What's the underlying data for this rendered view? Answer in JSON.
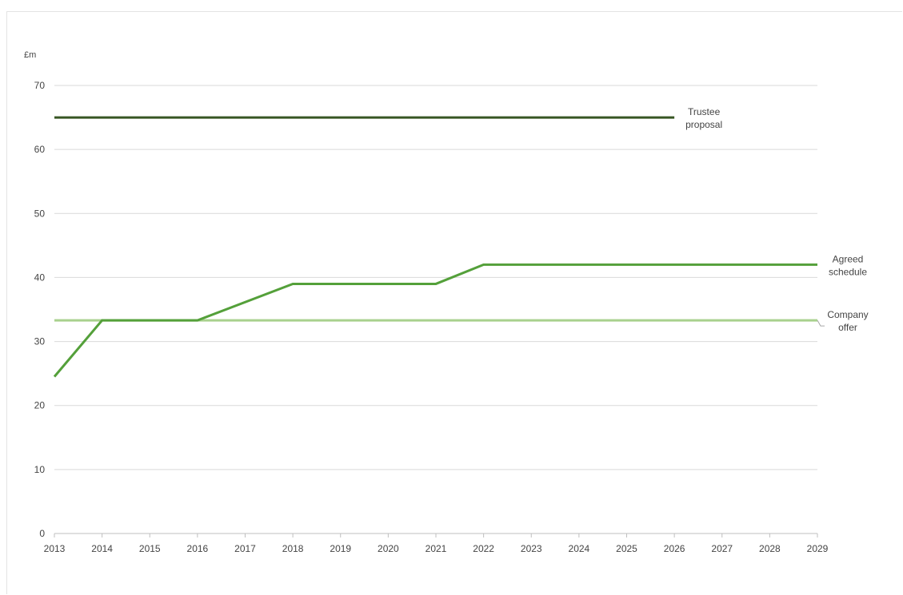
{
  "chart_data": {
    "type": "line",
    "ylabel": "£m",
    "ylim": [
      0,
      70
    ],
    "yticks": [
      0,
      10,
      20,
      30,
      40,
      50,
      60,
      70
    ],
    "xlim": [
      2013,
      2029
    ],
    "xticks": [
      2013,
      2014,
      2015,
      2016,
      2017,
      2018,
      2019,
      2020,
      2021,
      2022,
      2023,
      2024,
      2025,
      2026,
      2027,
      2028,
      2029
    ],
    "grid": true,
    "series": [
      {
        "name": "Trustee proposal",
        "label_lines": [
          "Trustee",
          "proposal"
        ],
        "color": "#375623",
        "points": [
          [
            2013,
            65
          ],
          [
            2026,
            65
          ]
        ]
      },
      {
        "name": "Agreed schedule",
        "label_lines": [
          "Agreed",
          "schedule"
        ],
        "color": "#54a03a",
        "points": [
          [
            2013,
            24.5
          ],
          [
            2014,
            33.3
          ],
          [
            2016,
            33.3
          ],
          [
            2018,
            39
          ],
          [
            2021,
            39
          ],
          [
            2022,
            42
          ],
          [
            2029,
            42
          ]
        ]
      },
      {
        "name": "Company offer",
        "label_lines": [
          "Company",
          "offer"
        ],
        "color": "#a9d18e",
        "points": [
          [
            2013,
            33.3
          ],
          [
            2029,
            33.3
          ]
        ]
      }
    ]
  }
}
